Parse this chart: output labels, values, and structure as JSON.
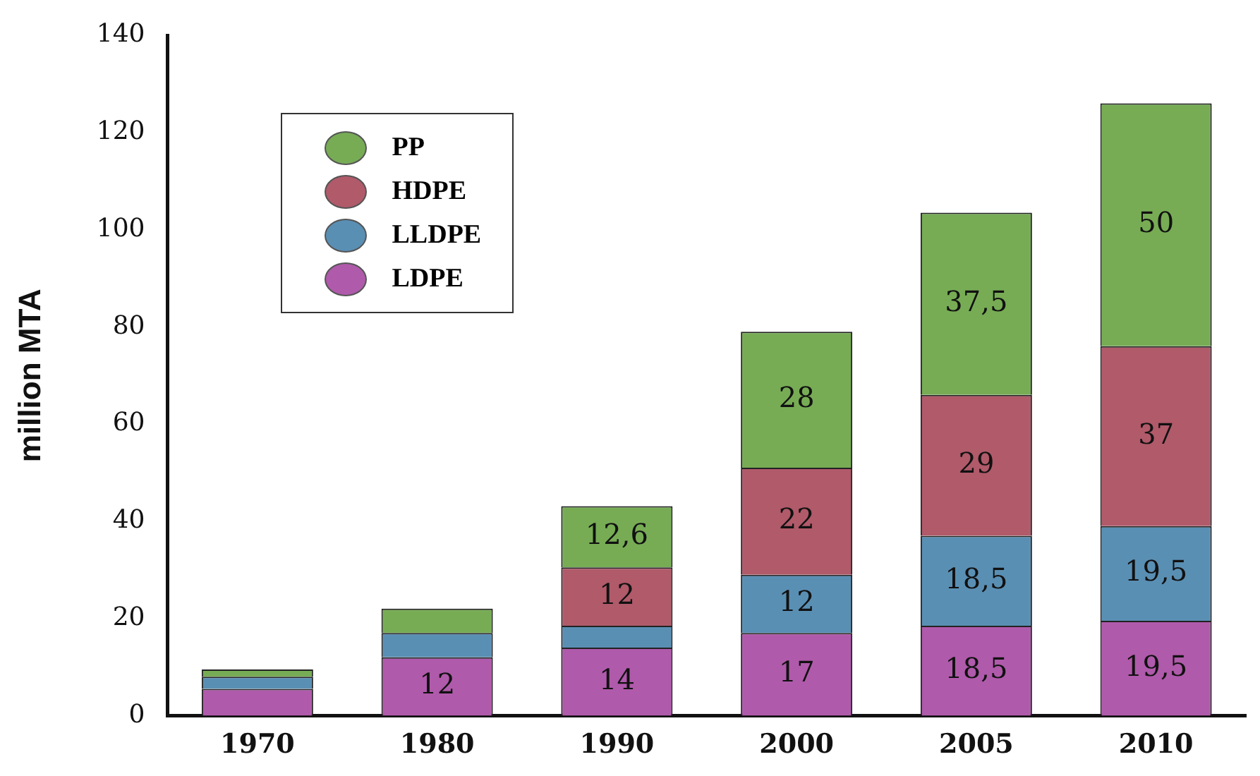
{
  "chart_data": {
    "type": "bar",
    "stacked": true,
    "ylabel": "million MTA",
    "categories": [
      "1970",
      "1980",
      "1990",
      "2000",
      "2005",
      "2010"
    ],
    "series": [
      {
        "name": "LDPE",
        "color": "#b05aab",
        "values": [
          5.5,
          12,
          14,
          17,
          18.5,
          19.5
        ],
        "value_labels": [
          null,
          "12",
          "14",
          "17",
          "18,5",
          "19,5"
        ]
      },
      {
        "name": "LLDPE",
        "color": "#5a8fb4",
        "values": [
          2.5,
          5,
          4.5,
          12,
          18.5,
          19.5
        ],
        "value_labels": [
          null,
          null,
          null,
          "12",
          "18,5",
          "19,5"
        ]
      },
      {
        "name": "HDPE",
        "color": "#b05a6a",
        "values": [
          null,
          null,
          12,
          22,
          29,
          37
        ],
        "value_labels": [
          null,
          null,
          "12",
          "22",
          "29",
          "37"
        ]
      },
      {
        "name": "PP",
        "color": "#77ac55",
        "values": [
          1.5,
          5,
          12.6,
          28,
          37.5,
          50
        ],
        "value_labels": [
          null,
          null,
          "12,6",
          "28",
          "37,5",
          "50"
        ]
      }
    ],
    "ylim": [
      0,
      140
    ],
    "yticks": [
      0,
      20,
      40,
      60,
      80,
      100,
      120,
      140
    ],
    "grid": false,
    "legend": "top left"
  }
}
